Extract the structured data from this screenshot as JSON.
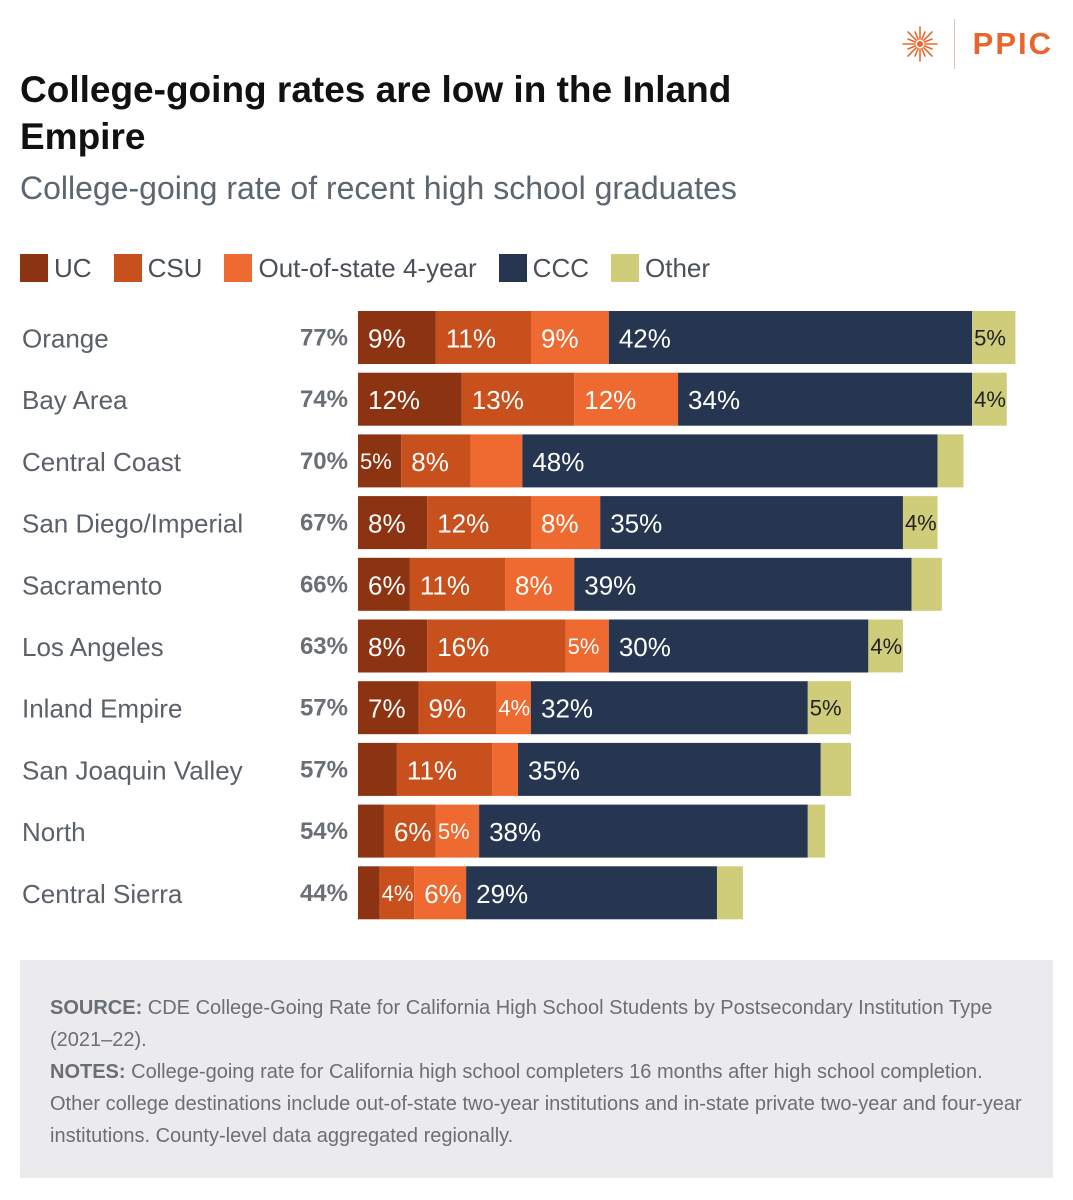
{
  "brand": {
    "name": "PPIC",
    "icon": "sunburst-icon",
    "color": "#e8662e"
  },
  "title": "College-going rates are low in the Inland Empire",
  "subtitle": "College-going rate of recent high school graduates",
  "legend": [
    {
      "label": "UC",
      "color": "#8c3412"
    },
    {
      "label": "CSU",
      "color": "#c8501c"
    },
    {
      "label": "Out-of-state 4-year",
      "color": "#ee6a30"
    },
    {
      "label": "CCC",
      "color": "#263651"
    },
    {
      "label": "Other",
      "color": "#cfcc7a"
    }
  ],
  "chart_data": {
    "type": "bar",
    "orientation": "horizontal",
    "stacked": true,
    "title": "College-going rate of recent high school graduates",
    "xlabel": "",
    "ylabel": "",
    "xlim": [
      0,
      80
    ],
    "grid": false,
    "legend_position": "top",
    "categories": [
      "Orange",
      "Bay Area",
      "Central Coast",
      "San Diego/Imperial",
      "Sacramento",
      "Los Angeles",
      "Inland Empire",
      "San Joaquin Valley",
      "North",
      "Central Sierra"
    ],
    "totals": [
      "77%",
      "74%",
      "70%",
      "67%",
      "66%",
      "63%",
      "57%",
      "57%",
      "54%",
      "44%"
    ],
    "series": [
      {
        "name": "UC",
        "color": "#8c3412",
        "values": [
          9,
          12,
          5,
          8,
          6,
          8,
          7,
          4.5,
          3,
          2.5
        ],
        "labels": [
          "9%",
          "12%",
          "5%",
          "8%",
          "6%",
          "8%",
          "7%",
          "",
          "",
          ""
        ]
      },
      {
        "name": "CSU",
        "color": "#c8501c",
        "values": [
          11,
          13,
          8,
          12,
          11,
          16,
          9,
          11,
          6,
          4
        ],
        "labels": [
          "11%",
          "13%",
          "8%",
          "12%",
          "11%",
          "16%",
          "9%",
          "11%",
          "6%",
          "4%"
        ]
      },
      {
        "name": "Out-of-state 4-year",
        "color": "#ee6a30",
        "values": [
          9,
          12,
          6,
          8,
          8,
          5,
          4,
          3,
          5,
          6
        ],
        "labels": [
          "9%",
          "12%",
          "",
          "8%",
          "8%",
          "5%",
          "4%",
          "",
          "5%",
          "6%"
        ]
      },
      {
        "name": "CCC",
        "color": "#263651",
        "values": [
          42,
          34,
          48,
          35,
          39,
          30,
          32,
          35,
          38,
          29
        ],
        "labels": [
          "42%",
          "34%",
          "48%",
          "35%",
          "39%",
          "30%",
          "32%",
          "35%",
          "38%",
          "29%"
        ]
      },
      {
        "name": "Other",
        "color": "#cfcc7a",
        "values": [
          5,
          4,
          3,
          4,
          3.5,
          4,
          5,
          3.5,
          2,
          3
        ],
        "labels": [
          "5%",
          "4%",
          "",
          "4%",
          "",
          "4%",
          "5%",
          "",
          "",
          ""
        ]
      }
    ]
  },
  "footer": {
    "source_label": "SOURCE:",
    "source_text": "CDE College-Going Rate for California High School Students by Postsecondary Institution Type (2021–22).",
    "notes_label": "NOTES:",
    "notes_text": "College-going rate for California high school completers 16 months after high school completion. Other college destinations include out-of-state two-year institutions and in-state private two-year and four-year institutions. County-level data aggregated regionally."
  }
}
